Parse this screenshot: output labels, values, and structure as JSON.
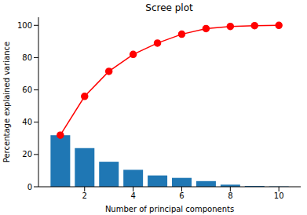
{
  "chart_data": {
    "type": "bar",
    "title": "Scree plot",
    "x_label": "Number of principal components",
    "y_label": "Percentage explained variance",
    "x": [
      1,
      2,
      3,
      4,
      5,
      6,
      7,
      8,
      9,
      10
    ],
    "series": [
      {
        "type": "bar",
        "color": "#1f77b4",
        "values": [
          32,
          24,
          15.5,
          10.5,
          7,
          5.5,
          3.5,
          1.3,
          0.5,
          0.2
        ]
      },
      {
        "type": "line",
        "color": "#ff0000",
        "marker": "circle",
        "line_style": "solid",
        "values": [
          32,
          56,
          71.5,
          82,
          89,
          94.5,
          98,
          99.3,
          99.8,
          100
        ]
      }
    ],
    "xlim": [
      0.1,
      10.9
    ],
    "xticks": [
      2,
      4,
      6,
      8,
      10
    ],
    "ylim": [
      0,
      105
    ],
    "yticks": [
      0,
      20,
      40,
      60,
      80,
      100
    ],
    "grid": false
  }
}
